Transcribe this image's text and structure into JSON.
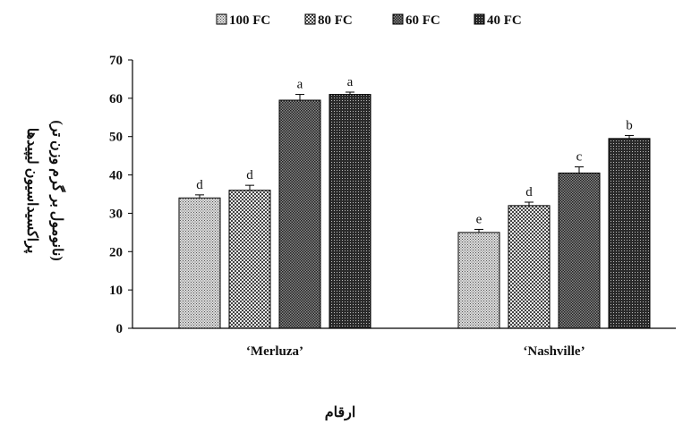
{
  "chart_data": {
    "type": "bar",
    "categories": [
      "‘Merluza’",
      "‘Nashville’"
    ],
    "series": [
      {
        "name": "100 FC",
        "values": [
          34,
          25
        ],
        "errors": [
          0.8,
          0.8
        ],
        "labels": [
          "d",
          "e"
        ],
        "pattern": "light-dots"
      },
      {
        "name": "80 FC",
        "values": [
          36,
          32
        ],
        "errors": [
          1.3,
          0.9
        ],
        "labels": [
          "d",
          "d"
        ],
        "pattern": "checker"
      },
      {
        "name": "60 FC",
        "values": [
          59.5,
          40.5
        ],
        "errors": [
          1.5,
          1.6
        ],
        "labels": [
          "a",
          "c"
        ],
        "pattern": "dense-dots"
      },
      {
        "name": "40 FC",
        "values": [
          61,
          49.5
        ],
        "errors": [
          0.6,
          0.8
        ],
        "labels": [
          "a",
          "b"
        ],
        "pattern": "dark-dots"
      }
    ],
    "yticks": [
      0,
      10,
      20,
      30,
      40,
      50,
      60,
      70
    ],
    "ylim": [
      0,
      70
    ],
    "ylabel_line1": "پراکسیداسیون لیپیدها",
    "ylabel_line2": "(نانومول بر گرم وزن تر)",
    "xlabel": "ارقام",
    "legend_position": "top",
    "grid": false,
    "colors": {
      "bar_fill_base": "#ffffff",
      "ink": "#000000"
    }
  }
}
